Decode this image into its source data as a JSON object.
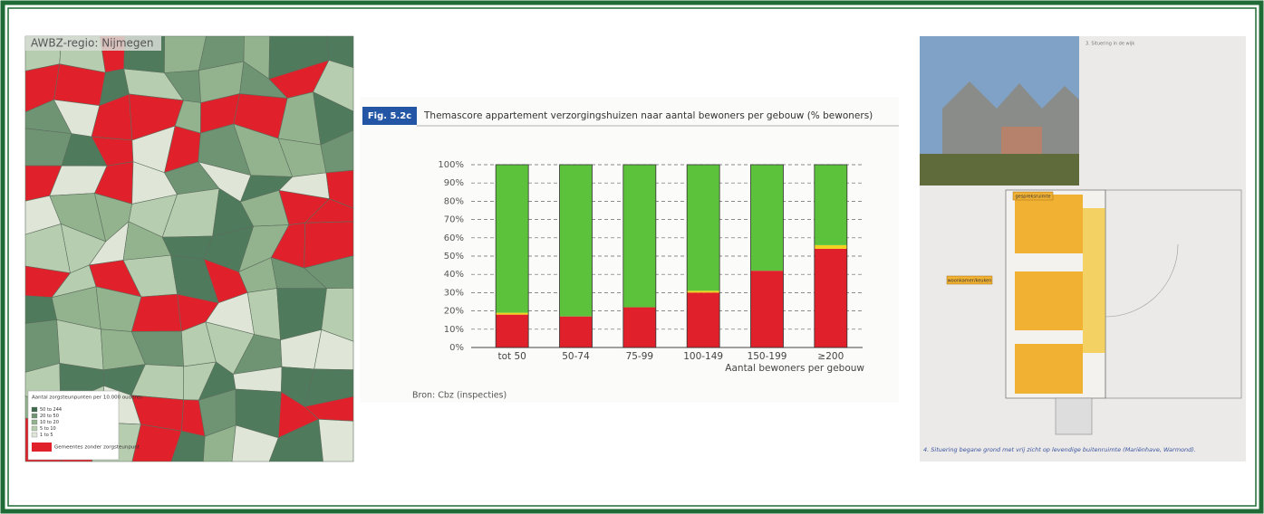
{
  "map": {
    "title": "AWBZ-regio: Nijmegen",
    "legend": {
      "title": "Aantal zorgsteunpunten per 10.000 ouderen",
      "items": [
        "50 to 244",
        "20 to 50",
        "10 to 20",
        "5 to 10",
        "1 to 5"
      ],
      "no_point": "Gemeentes zonder zorgsteunpunt"
    }
  },
  "chart_data": {
    "type": "stacked-bar",
    "figure": "Fig. 5.2c",
    "title": "Themascore appartement verzorgingshuizen naar aantal bewoners per gebouw (% bewoners)",
    "x_label": "Aantal bewoners per gebouw",
    "source": "Bron: Cbz (inspecties)",
    "categories": [
      "tot 50",
      "50-74",
      "75-99",
      "100-149",
      "150-199",
      "≥200"
    ],
    "series": [
      {
        "color": "#e0202a",
        "values": [
          18,
          17,
          22,
          30,
          42,
          54
        ]
      },
      {
        "color": "#f2d21e",
        "values": [
          1,
          0,
          0,
          1,
          0,
          2
        ]
      },
      {
        "color": "#5cc23c",
        "values": [
          81,
          83,
          78,
          69,
          58,
          44
        ]
      }
    ],
    "ylim": [
      0,
      100
    ],
    "yticks": [
      {
        "value": 0,
        "label": "0%"
      },
      {
        "value": 10,
        "label": "10%"
      },
      {
        "value": 20,
        "label": "20%"
      },
      {
        "value": 30,
        "label": "30%"
      },
      {
        "value": 40,
        "label": "40%"
      },
      {
        "value": 50,
        "label": "50%"
      },
      {
        "value": 60,
        "label": "60%"
      },
      {
        "value": 70,
        "label": "70%"
      },
      {
        "value": 80,
        "label": "80%"
      },
      {
        "value": 90,
        "label": "90%"
      },
      {
        "value": 100,
        "label": "100%"
      }
    ],
    "grid": true
  },
  "plan": {
    "photo_caption": "3. Situering in de wijk",
    "labels": [
      "gespreksruimte",
      "woonkamer/keuken"
    ],
    "caption": "4. Situering begane grond met vrij zicht op levendige buitenruimte (Mariënhave, Warmond)."
  }
}
